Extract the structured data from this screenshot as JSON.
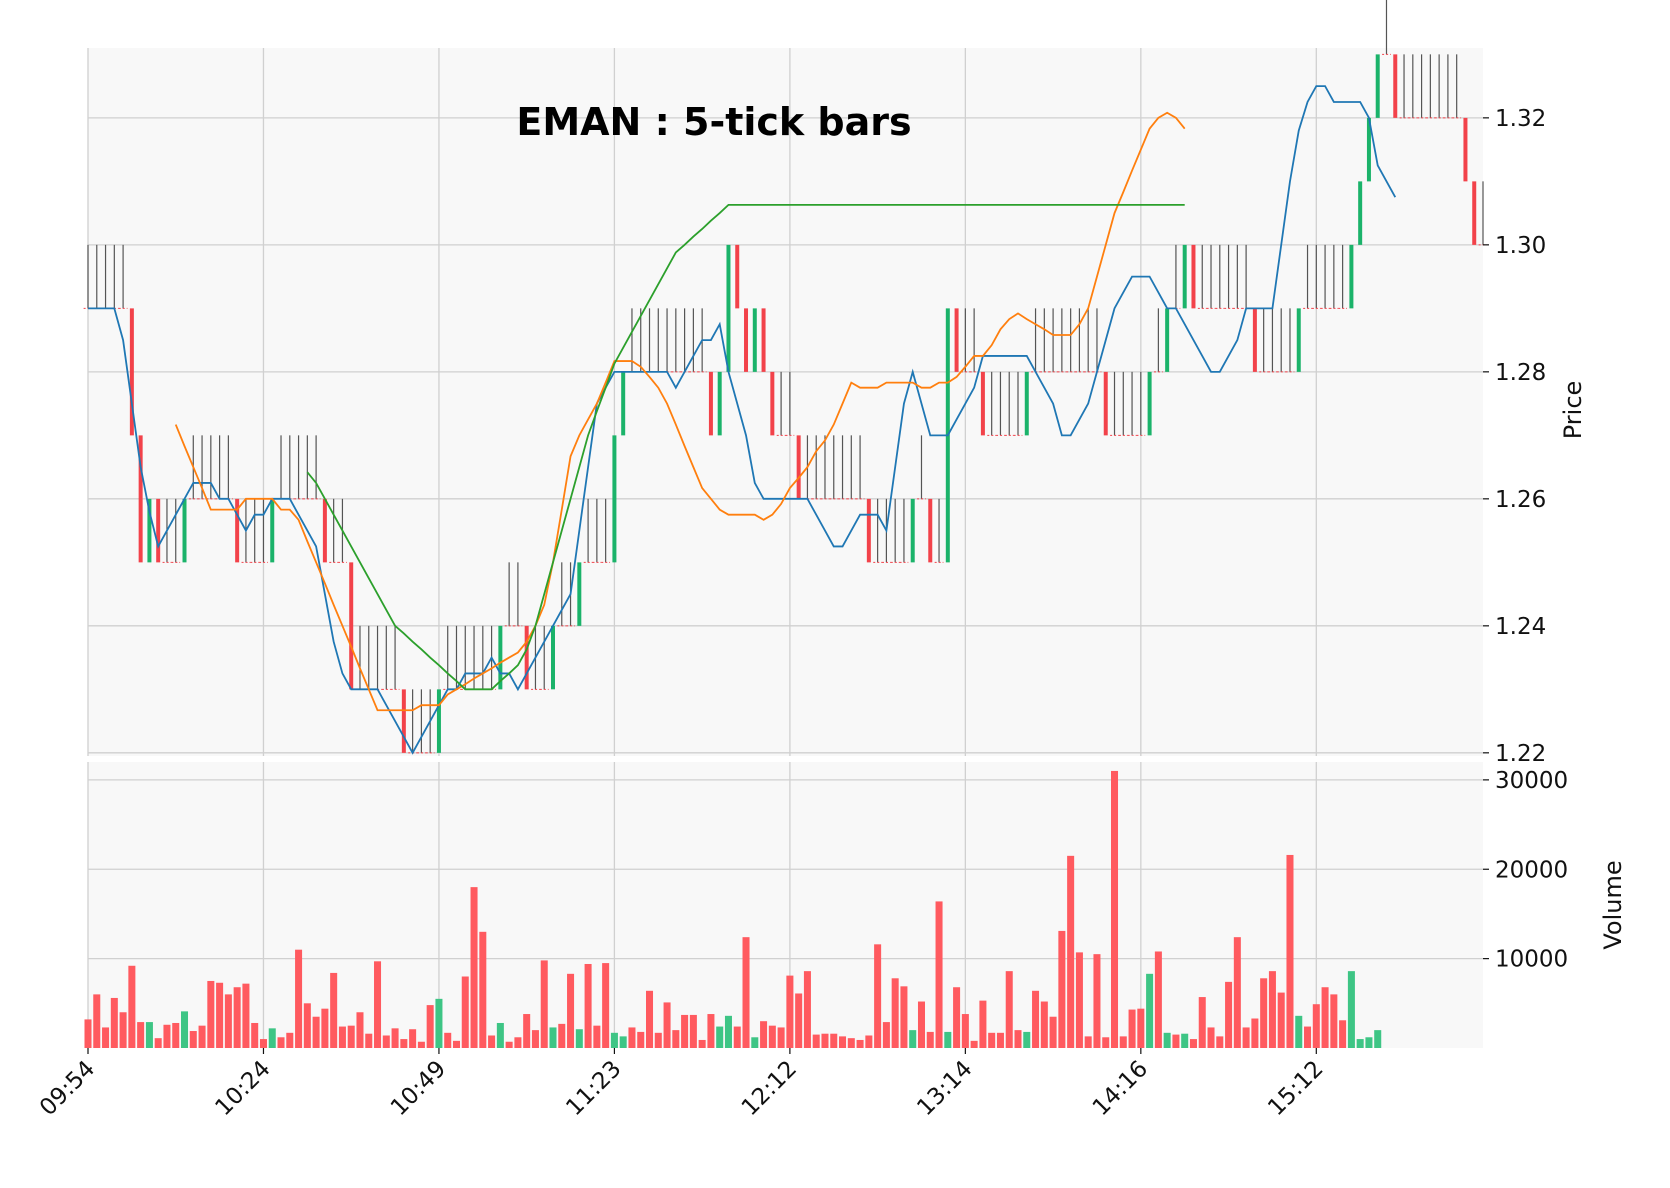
{
  "chart_data": {
    "type": "ohlc",
    "title": "EMAN : 5-tick bars",
    "x_tick_labels": [
      "09:54",
      "10:24",
      "10:49",
      "11:23",
      "12:12",
      "13:14",
      "14:16",
      "15:12"
    ],
    "x_tick_bar_index": [
      0,
      20,
      40,
      60,
      80,
      100,
      120,
      140
    ],
    "price_axis": {
      "label": "Price",
      "ylim": [
        1.2195,
        1.331
      ],
      "ticks": [
        1.22,
        1.24,
        1.26,
        1.28,
        1.3,
        1.32
      ],
      "tick_labels": [
        "1.22",
        "1.24",
        "1.26",
        "1.28",
        "1.30",
        "1.32"
      ]
    },
    "volume_axis": {
      "label": "Volume",
      "ylim": [
        0,
        32000
      ],
      "ticks": [
        10000,
        20000,
        30000
      ],
      "tick_labels": [
        "10000",
        "20000",
        "30000"
      ]
    },
    "colors": {
      "up": "#1bb36a",
      "down": "#f2424a",
      "neutral": "#555555",
      "vol_up": "#3ec585",
      "vol_down": "#ff5a5f",
      "ma_fast": "#1f77b4",
      "ma_mid": "#ff7f0e",
      "ma_slow": "#2ca02c",
      "plot_bg": "#f8f8f8",
      "grid": "#d0d0d0"
    },
    "grid": true,
    "bars_close": [
      1.29,
      1.29,
      1.29,
      1.29,
      1.29,
      1.27,
      1.25,
      1.26,
      1.25,
      1.25,
      1.25,
      1.26,
      1.26,
      1.26,
      1.26,
      1.26,
      1.26,
      1.25,
      1.25,
      1.25,
      1.25,
      1.26,
      1.26,
      1.26,
      1.26,
      1.26,
      1.26,
      1.25,
      1.25,
      1.25,
      1.23,
      1.23,
      1.23,
      1.23,
      1.23,
      1.23,
      1.22,
      1.22,
      1.22,
      1.22,
      1.23,
      1.23,
      1.23,
      1.23,
      1.23,
      1.23,
      1.23,
      1.24,
      1.24,
      1.24,
      1.23,
      1.23,
      1.23,
      1.24,
      1.24,
      1.24,
      1.25,
      1.25,
      1.25,
      1.25,
      1.27,
      1.28,
      1.28,
      1.28,
      1.28,
      1.28,
      1.28,
      1.28,
      1.28,
      1.28,
      1.28,
      1.27,
      1.28,
      1.3,
      1.29,
      1.28,
      1.29,
      1.28,
      1.27,
      1.27,
      1.27,
      1.26,
      1.26,
      1.26,
      1.26,
      1.26,
      1.26,
      1.26,
      1.26,
      1.25,
      1.25,
      1.25,
      1.25,
      1.25,
      1.26,
      1.26,
      1.25,
      1.25,
      1.29,
      1.28,
      1.28,
      1.28,
      1.27,
      1.27,
      1.27,
      1.27,
      1.27,
      1.28,
      1.28,
      1.28,
      1.28,
      1.28,
      1.28,
      1.28,
      1.28,
      1.28,
      1.27,
      1.27,
      1.27,
      1.27,
      1.27,
      1.28,
      1.28,
      1.29,
      1.29,
      1.3,
      1.29,
      1.29,
      1.29,
      1.29,
      1.29,
      1.29,
      1.29,
      1.28,
      1.28,
      1.28,
      1.28,
      1.28,
      1.29,
      1.29,
      1.29,
      1.29,
      1.29,
      1.29,
      1.3,
      1.31,
      1.32,
      1.33,
      1.33,
      1.32,
      1.32,
      1.32,
      1.32,
      1.32,
      1.32,
      1.32,
      1.32,
      1.31,
      1.3,
      1.3
    ],
    "volume": [
      3200,
      6000,
      2300,
      5600,
      4000,
      9200,
      2900,
      2900,
      1100,
      2600,
      2800,
      4100,
      1900,
      2500,
      7500,
      7300,
      6000,
      6800,
      7200,
      2800,
      1000,
      2200,
      1200,
      1700,
      11000,
      5000,
      3500,
      4400,
      8400,
      2400,
      2500,
      4000,
      1600,
      9700,
      1400,
      2200,
      1000,
      2100,
      700,
      4800,
      5500,
      1700,
      800,
      8000,
      18000,
      13000,
      1400,
      2800,
      700,
      1200,
      3800,
      2000,
      9800,
      2300,
      2700,
      8300,
      2100,
      9400,
      2500,
      9500,
      1700,
      1300,
      2300,
      1800,
      6400,
      1700,
      5100,
      2000,
      3700,
      3700,
      900,
      3800,
      2400,
      3600,
      2400,
      12400,
      1200,
      3000,
      2500,
      2300,
      8100,
      6100,
      8600,
      1500,
      1600,
      1600,
      1300,
      1100,
      900,
      1400,
      11600,
      2900,
      7800,
      6900,
      2000,
      5200,
      1800,
      16400,
      1800,
      6800,
      3800,
      800,
      5300,
      1700,
      1700,
      8600,
      2000,
      1800,
      6400,
      5200,
      3500,
      13100,
      21500,
      10700,
      1300,
      10500,
      1200,
      31000,
      1300,
      4300,
      4400,
      8300,
      10800,
      1700,
      1500,
      1600,
      1000,
      5700,
      2300,
      1300,
      7400,
      12400,
      2300,
      3300,
      7800,
      8600,
      6200,
      21600,
      3600,
      2400,
      4900,
      6800,
      6000,
      3100,
      8600,
      1000,
      1200,
      2000
    ],
    "ma_fast": [
      1.29,
      1.29,
      1.29,
      1.29,
      1.285,
      1.275,
      1.265,
      1.258,
      1.2525,
      1.255,
      1.2575,
      1.26,
      1.2625,
      1.2625,
      1.2625,
      1.26,
      1.26,
      1.2575,
      1.255,
      1.2575,
      1.2575,
      1.26,
      1.26,
      1.26,
      1.2575,
      1.255,
      1.2525,
      1.245,
      1.2375,
      1.2325,
      1.23,
      1.23,
      1.23,
      1.23,
      1.2275,
      1.225,
      1.2225,
      1.22,
      1.2225,
      1.225,
      1.2275,
      1.23,
      1.23,
      1.2325,
      1.2325,
      1.2325,
      1.235,
      1.2325,
      1.2325,
      1.23,
      1.2325,
      1.235,
      1.2375,
      1.24,
      1.2425,
      1.245,
      1.255,
      1.265,
      1.275,
      1.2775,
      1.28,
      1.28,
      1.28,
      1.28,
      1.28,
      1.28,
      1.28,
      1.2775,
      1.28,
      1.2825,
      1.285,
      1.285,
      1.2875,
      1.28,
      1.275,
      1.27,
      1.2625,
      1.26,
      1.26,
      1.26,
      1.26,
      1.26,
      1.26,
      1.2575,
      1.255,
      1.2525,
      1.2525,
      1.255,
      1.2575,
      1.2575,
      1.2575,
      1.255,
      1.265,
      1.275,
      1.28,
      1.275,
      1.27,
      1.27,
      1.27,
      1.2725,
      1.275,
      1.2775,
      1.2825,
      1.2825,
      1.2825,
      1.2825,
      1.2825,
      1.2825,
      1.28,
      1.2775,
      1.275,
      1.27,
      1.27,
      1.2725,
      1.275,
      1.28,
      1.285,
      1.29,
      1.2925,
      1.295,
      1.295,
      1.295,
      1.2925,
      1.29,
      1.29,
      1.2875,
      1.285,
      1.2825,
      1.28,
      1.28,
      1.2825,
      1.285,
      1.29,
      1.29,
      1.29,
      1.29,
      1.3,
      1.31,
      1.318,
      1.3225,
      1.325,
      1.325,
      1.3225,
      1.3225,
      1.3225,
      1.3225,
      1.32,
      1.3125,
      1.31,
      1.3075
    ],
    "ma_mid": [
      null,
      null,
      null,
      null,
      null,
      null,
      null,
      null,
      null,
      null,
      1.2717,
      1.2683,
      1.265,
      1.2617,
      1.2583,
      1.2583,
      1.2583,
      1.2583,
      1.26,
      1.26,
      1.26,
      1.26,
      1.2583,
      1.2583,
      1.2567,
      1.2533,
      1.25,
      1.2467,
      1.2433,
      1.24,
      1.2367,
      1.2333,
      1.23,
      1.2267,
      1.2267,
      1.2267,
      1.2267,
      1.2267,
      1.2275,
      1.2275,
      1.2275,
      1.2292,
      1.23,
      1.2308,
      1.2317,
      1.2325,
      1.2333,
      1.2342,
      1.235,
      1.2358,
      1.2375,
      1.24,
      1.2433,
      1.25,
      1.2583,
      1.2667,
      1.27,
      1.2725,
      1.275,
      1.2783,
      1.2817,
      1.2817,
      1.2817,
      1.2808,
      1.2792,
      1.2775,
      1.275,
      1.2717,
      1.2683,
      1.265,
      1.2617,
      1.26,
      1.2583,
      1.2575,
      1.2575,
      1.2575,
      1.2575,
      1.2567,
      1.2575,
      1.2592,
      1.2617,
      1.2633,
      1.265,
      1.2675,
      1.2692,
      1.2717,
      1.275,
      1.2783,
      1.2775,
      1.2775,
      1.2775,
      1.2783,
      1.2783,
      1.2783,
      1.2783,
      1.2775,
      1.2775,
      1.2783,
      1.2783,
      1.2792,
      1.2808,
      1.2825,
      1.2825,
      1.2842,
      1.2867,
      1.2883,
      1.2892,
      1.2883,
      1.2875,
      1.2867,
      1.2858,
      1.2858,
      1.2858,
      1.2875,
      1.29,
      1.295,
      1.3,
      1.305,
      1.3083,
      1.3117,
      1.315,
      1.3183,
      1.32,
      1.3208,
      1.32,
      1.3183
    ],
    "ma_slow": [
      null,
      null,
      null,
      null,
      null,
      null,
      null,
      null,
      null,
      null,
      null,
      null,
      null,
      null,
      null,
      null,
      null,
      null,
      null,
      null,
      null,
      null,
      null,
      null,
      null,
      1.2642,
      1.2625,
      1.26,
      1.2575,
      1.255,
      1.2525,
      1.25,
      1.2475,
      1.245,
      1.2425,
      1.24,
      1.2388,
      1.2375,
      1.2363,
      1.235,
      1.2338,
      1.2325,
      1.2313,
      1.23,
      1.23,
      1.23,
      1.23,
      1.2313,
      1.2325,
      1.2338,
      1.2363,
      1.24,
      1.245,
      1.25,
      1.255,
      1.26,
      1.265,
      1.27,
      1.2738,
      1.2775,
      1.2813,
      1.2838,
      1.2863,
      1.2888,
      1.2913,
      1.2938,
      1.2963,
      1.2988,
      1.3,
      1.3013,
      1.3025,
      1.3038,
      1.305,
      1.3063,
      1.3063,
      1.3063,
      1.3063,
      1.3063,
      1.3063,
      1.3063,
      1.3063,
      1.3063,
      1.3063,
      1.3063,
      1.3063,
      1.3063,
      1.3063,
      1.3063,
      1.3063,
      1.3063,
      1.3063,
      1.3063,
      1.3063,
      1.3063,
      1.3063,
      1.3063,
      1.3063,
      1.3063,
      1.3063,
      1.3063,
      1.3063,
      1.3063,
      1.3063,
      1.3063,
      1.3063,
      1.3063,
      1.3063,
      1.3063,
      1.3063,
      1.3063,
      1.3063,
      1.3063,
      1.3063,
      1.3063,
      1.3063,
      1.3063,
      1.3063,
      1.3063,
      1.3063,
      1.3063,
      1.3063,
      1.3063,
      1.3063,
      1.3063,
      1.3063,
      1.3063
    ]
  }
}
